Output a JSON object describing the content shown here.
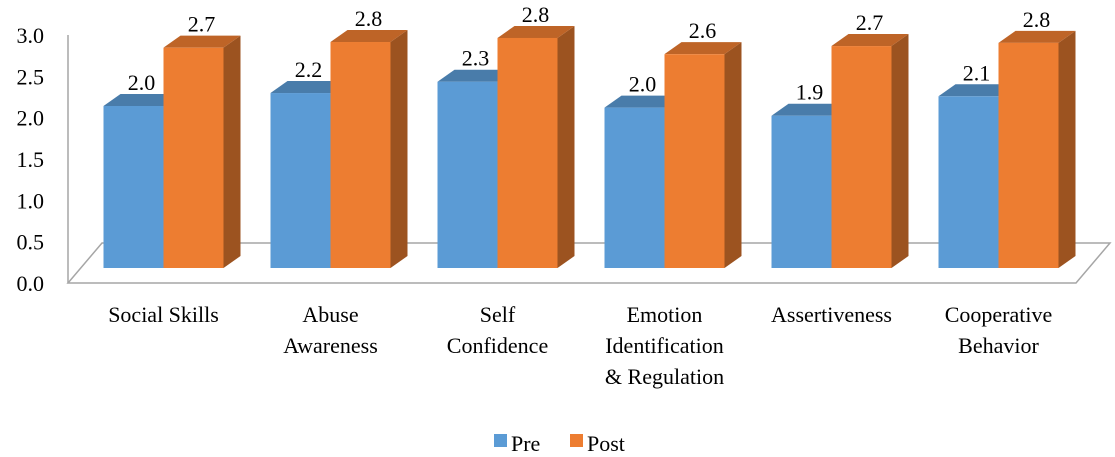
{
  "chart_data": {
    "type": "bar3d",
    "categories": [
      "Social Skills",
      "Abuse\nAwareness",
      "Self\nConfidence",
      "Emotion\nIdentification\n& Regulation",
      "Assertiveness",
      "Cooperative\nBehavior"
    ],
    "series": [
      {
        "name": "Pre",
        "color": "#5b9bd5",
        "values": [
          2.0,
          2.16,
          2.3,
          1.98,
          1.88,
          2.12
        ],
        "value_labels": [
          "2.0",
          "2.2",
          "2.3",
          "2.0",
          "1.9",
          "2.1"
        ]
      },
      {
        "name": "Post",
        "color": "#ed7d31",
        "values": [
          2.72,
          2.79,
          2.84,
          2.64,
          2.74,
          2.78
        ],
        "value_labels": [
          "2.7",
          "2.8",
          "2.8",
          "2.6",
          "2.7",
          "2.8"
        ]
      }
    ],
    "ylim": [
      0,
      3
    ],
    "yticks": [
      {
        "value": 0,
        "label": "0.0"
      },
      {
        "value": 0.5,
        "label": "0.5"
      },
      {
        "value": 1,
        "label": "1.0"
      },
      {
        "value": 1.5,
        "label": "1.5"
      },
      {
        "value": 2,
        "label": "2.0"
      },
      {
        "value": 2.5,
        "label": "2.5"
      },
      {
        "value": 3,
        "label": "3.0"
      }
    ],
    "legend": "bottom"
  }
}
